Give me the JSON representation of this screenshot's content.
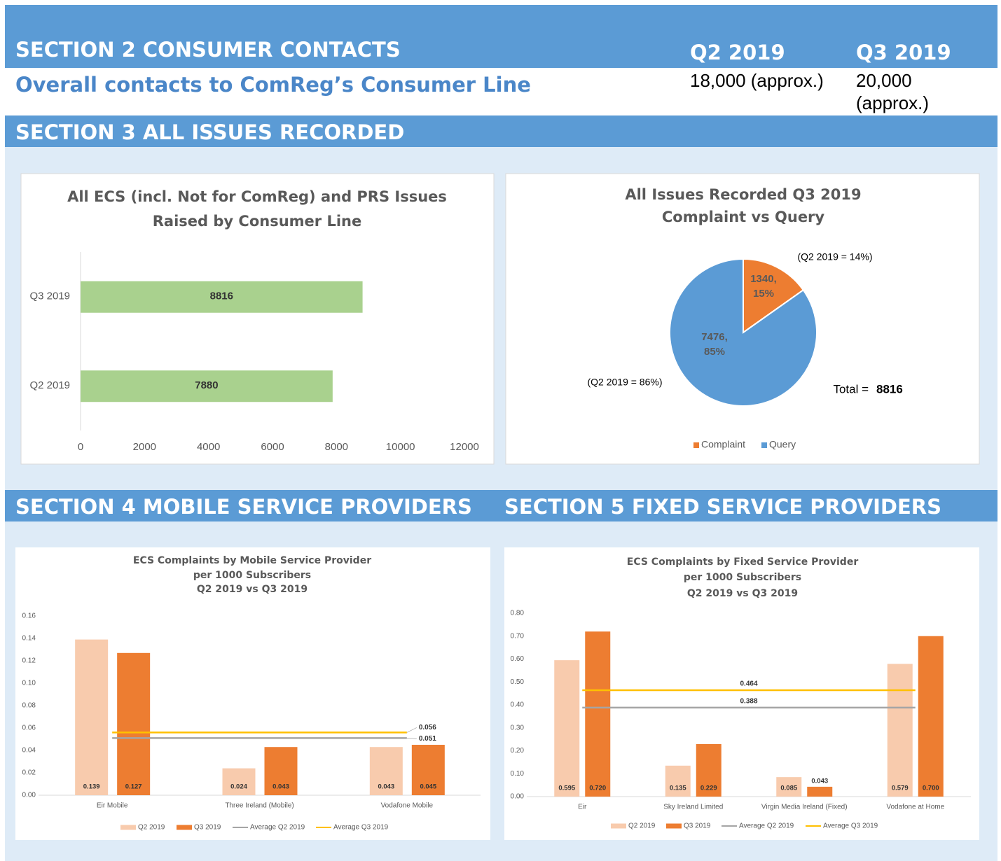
{
  "section2": {
    "title": "SECTION 2 CONSUMER CONTACTS",
    "columns": [
      "Q2 2019",
      "Q3 2019"
    ],
    "row_label": "Overall contacts to ComReg’s Consumer Line",
    "row_values": [
      "18,000 (approx.)",
      "20,000 (approx.)"
    ]
  },
  "section3": {
    "title": "SECTION 3 ALL ISSUES RECORDED"
  },
  "section4": {
    "title": "SECTION 4 MOBILE SERVICE PROVIDERS"
  },
  "section5": {
    "title": "SECTION 5 FIXED SERVICE PROVIDERS"
  },
  "chart_data": [
    {
      "type": "bar",
      "horizontal": true,
      "title": [
        "All ECS (incl. Not for ComReg) and PRS Issues",
        "Raised by Consumer Line"
      ],
      "categories": [
        "Q3 2019",
        "Q2 2019"
      ],
      "values": [
        8816,
        7880
      ],
      "color": "#a9d18e",
      "xlim": [
        0,
        12000
      ],
      "xticks": [
        0,
        2000,
        4000,
        6000,
        8000,
        10000,
        12000
      ]
    },
    {
      "type": "pie",
      "title": [
        "All Issues Recorded Q3 2019",
        "Complaint vs Query"
      ],
      "categories": [
        "Complaint",
        "Query"
      ],
      "values": [
        1340,
        7476
      ],
      "value_labels": [
        "1340, 15%",
        "7476, 85%"
      ],
      "colors": [
        "#ed7d31",
        "#5b9bd5"
      ],
      "annotations": [
        "(Q2 2019 = 14%)",
        "(Q2 2019 = 86%)"
      ],
      "total_label": "Total =",
      "total": 8816,
      "legend": "bottom"
    },
    {
      "type": "bar",
      "title": [
        "ECS Complaints by Mobile Service Provider",
        "per 1000 Subscribers",
        "Q2 2019 vs Q3 2019"
      ],
      "categories": [
        "Eir Mobile",
        "Three Ireland (Mobile)",
        "Vodafone Mobile"
      ],
      "series": [
        {
          "name": "Q2 2019",
          "color": "#f8cbad",
          "values": [
            0.139,
            0.024,
            0.043
          ]
        },
        {
          "name": "Q3 2019",
          "color": "#ed7d31",
          "values": [
            0.127,
            0.043,
            0.045
          ]
        },
        {
          "name": "Average Q2 2019",
          "color": "#a5a5a5",
          "type": "line",
          "value": 0.051
        },
        {
          "name": "Average Q3 2019",
          "color": "#ffc000",
          "type": "line",
          "value": 0.056
        }
      ],
      "ylim": [
        0,
        0.16
      ],
      "yticks": [
        {
          "value": 0,
          "label": "0.00"
        },
        {
          "value": 0.02,
          "label": "0.02"
        },
        {
          "value": 0.04,
          "label": "0.04"
        },
        {
          "value": 0.06,
          "label": "0.06"
        },
        {
          "value": 0.08,
          "label": "0.08"
        },
        {
          "value": 0.1,
          "label": "0.10"
        },
        {
          "value": 0.12,
          "label": "0.12"
        },
        {
          "value": 0.14,
          "label": "0.14"
        },
        {
          "value": 0.16,
          "label": "0.16"
        }
      ],
      "legend": "bottom"
    },
    {
      "type": "bar",
      "title": [
        "ECS Complaints by Fixed Service Provider",
        "per 1000 Subscribers",
        "Q2 2019 vs Q3 2019"
      ],
      "categories": [
        "Eir",
        "Sky Ireland Limited",
        "Virgin Media Ireland (Fixed)",
        "Vodafone at Home"
      ],
      "series": [
        {
          "name": "Q2 2019",
          "color": "#f8cbad",
          "values": [
            0.595,
            0.135,
            0.085,
            0.579
          ]
        },
        {
          "name": "Q3 2019",
          "color": "#ed7d31",
          "values": [
            0.72,
            0.229,
            0.043,
            0.7
          ],
          "value_labels": [
            "0.720",
            "0.229",
            "0.043",
            "0.700"
          ]
        },
        {
          "name": "Average Q2 2019",
          "color": "#a5a5a5",
          "type": "line",
          "value": 0.388
        },
        {
          "name": "Average Q3 2019",
          "color": "#ffc000",
          "type": "line",
          "value": 0.464
        }
      ],
      "ylim": [
        0,
        0.8
      ],
      "yticks": [
        {
          "value": 0,
          "label": "0.00"
        },
        {
          "value": 0.1,
          "label": "0.10"
        },
        {
          "value": 0.2,
          "label": "0.20"
        },
        {
          "value": 0.3,
          "label": "0.30"
        },
        {
          "value": 0.4,
          "label": "0.40"
        },
        {
          "value": 0.5,
          "label": "0.50"
        },
        {
          "value": 0.6,
          "label": "0.60"
        },
        {
          "value": 0.7,
          "label": "0.70"
        },
        {
          "value": 0.8,
          "label": "0.80"
        }
      ],
      "legend": "bottom"
    }
  ]
}
